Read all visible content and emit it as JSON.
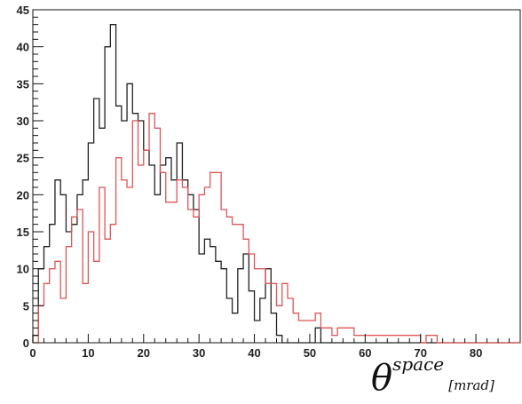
{
  "chart_data": {
    "type": "histogram",
    "xlabel": {
      "symbol": "θ",
      "superscript": "space",
      "unit": "[mrad]"
    },
    "xlim": [
      0,
      88
    ],
    "ylim": [
      0,
      45
    ],
    "bin_width": 1,
    "x_ticks": [
      0,
      10,
      20,
      30,
      40,
      50,
      60,
      70,
      80
    ],
    "y_ticks": [
      0,
      5,
      10,
      15,
      20,
      25,
      30,
      35,
      40,
      45
    ],
    "grid": false,
    "series": [
      {
        "color": "#222222",
        "bin_start": 0,
        "values": [
          1,
          10,
          13,
          16,
          22,
          20,
          15,
          16,
          20,
          22,
          27,
          33,
          29,
          40,
          43,
          32,
          30,
          35,
          31,
          30,
          26,
          24,
          20,
          24,
          25,
          22,
          27,
          22,
          20,
          18,
          12,
          14,
          13,
          11,
          10,
          6,
          4,
          10,
          12,
          7,
          3,
          6,
          10,
          4,
          1,
          0,
          0,
          0,
          0,
          0,
          0,
          2,
          0,
          0,
          0,
          0,
          0,
          0,
          0,
          0,
          0,
          0,
          0,
          0,
          0,
          0,
          0,
          0,
          0,
          0,
          0,
          0,
          0,
          0,
          0,
          0,
          0,
          0,
          0,
          0,
          0,
          0,
          0,
          0,
          0,
          0,
          0,
          0
        ]
      },
      {
        "color": "#e05555",
        "bin_start": 0,
        "values": [
          0,
          5,
          8,
          10,
          11,
          6,
          13,
          17,
          18,
          8,
          15,
          11,
          21,
          14,
          16,
          25,
          22,
          21,
          30,
          24,
          26,
          31,
          29,
          23,
          19,
          19,
          22,
          21,
          18,
          17,
          20,
          21,
          23,
          23,
          18,
          17,
          16,
          16,
          14,
          12,
          10,
          10,
          8,
          8,
          5,
          8,
          6,
          4,
          3,
          3,
          3,
          4,
          2,
          2,
          1,
          2,
          2,
          2,
          1,
          1,
          1,
          1,
          1,
          1,
          1,
          1,
          1,
          1,
          1,
          1,
          0,
          1,
          1,
          0,
          0,
          0,
          0,
          0,
          0,
          0,
          0,
          0,
          0,
          0,
          0,
          0,
          0,
          0
        ]
      }
    ]
  }
}
